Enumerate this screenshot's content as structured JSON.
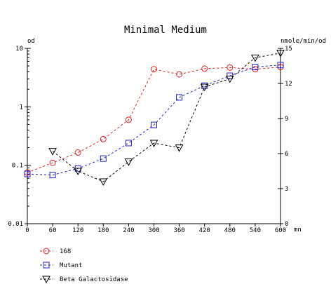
{
  "chart_data": {
    "type": "line",
    "title": "Minimal Medium",
    "xlabel": "mn",
    "ylabel_left": "od",
    "ylabel_right": "nmole/min/od",
    "x_ticks": [
      "0",
      "60",
      "120",
      "180",
      "240",
      "300",
      "360",
      "420",
      "480",
      "540",
      "600"
    ],
    "xlim": [
      0,
      600
    ],
    "y_left_log": true,
    "y_left_lim": [
      0.01,
      10
    ],
    "y_left_ticks": [
      "0.01",
      "0.1",
      "1",
      "10"
    ],
    "y_left_tick_values": [
      0.01,
      0.1,
      1,
      10
    ],
    "y_right_lim": [
      0,
      15
    ],
    "y_right_ticks": [
      "0",
      "3",
      "6",
      "9",
      "12",
      "15"
    ],
    "y_right_tick_values": [
      0,
      3,
      6,
      9,
      12,
      15
    ],
    "grid": false,
    "legend_position": "bottom-left",
    "series": [
      {
        "name": "168",
        "axis": "left",
        "marker": "circle",
        "color": "#e02020",
        "x": [
          0,
          60,
          120,
          180,
          240,
          300,
          360,
          420,
          480,
          540,
          600
        ],
        "values": [
          0.075,
          0.11,
          0.165,
          0.28,
          0.6,
          4.4,
          3.6,
          4.5,
          4.7,
          4.4,
          4.8
        ]
      },
      {
        "name": "Mutant",
        "axis": "left",
        "marker": "square",
        "color": "#2020d0",
        "x": [
          0,
          60,
          120,
          180,
          240,
          300,
          360,
          420,
          480,
          540,
          600
        ],
        "values": [
          0.071,
          0.068,
          0.088,
          0.13,
          0.24,
          0.49,
          1.45,
          2.3,
          3.4,
          4.8,
          5.2
        ]
      },
      {
        "name": "Beta Galactosidase",
        "axis": "right",
        "marker": "triangle-down",
        "color": "#000000",
        "x": [
          60,
          120,
          180,
          240,
          300,
          360,
          420,
          480,
          540,
          600
        ],
        "values": [
          6.2,
          4.5,
          3.6,
          5.3,
          6.9,
          6.5,
          11.7,
          12.4,
          14.2,
          14.6
        ]
      }
    ]
  }
}
